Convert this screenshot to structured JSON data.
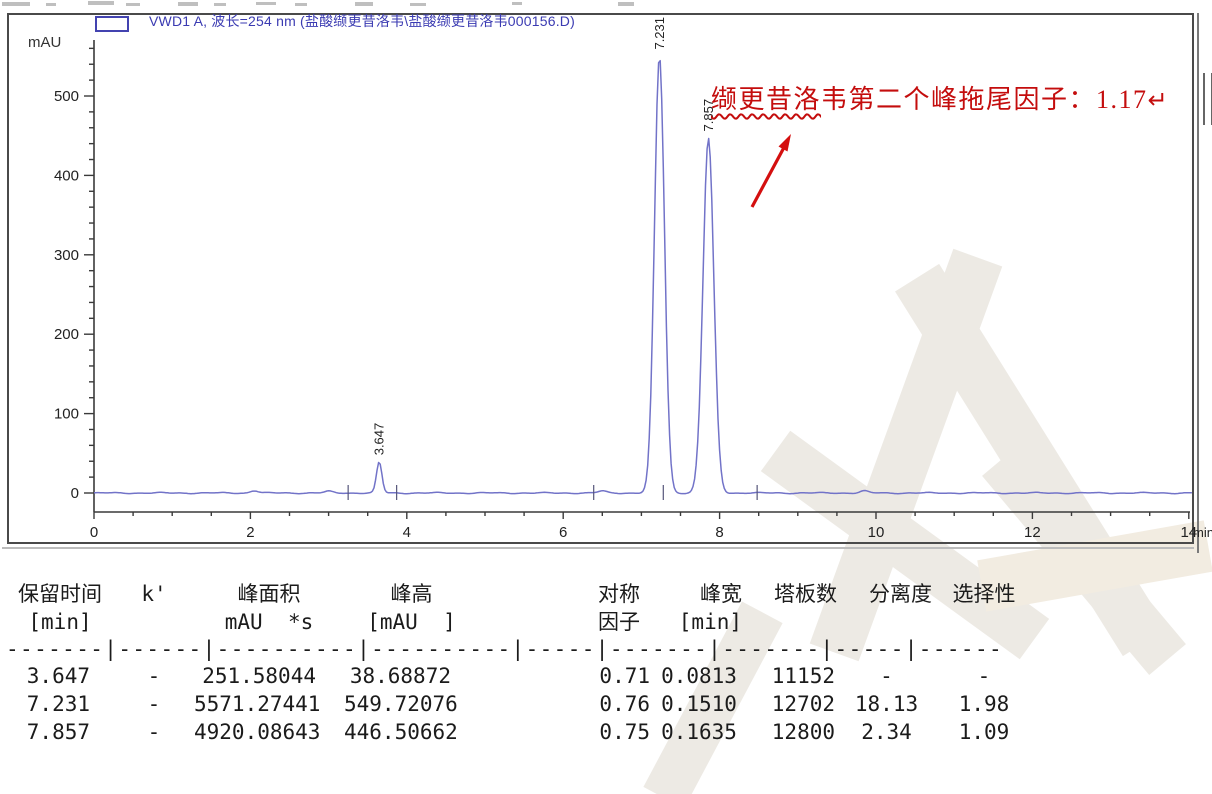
{
  "legend": {
    "label": "VWD1 A, 波长=254 nm (盐酸缬更昔洛韦\\盐酸缬更昔洛韦000156.D)"
  },
  "axes": {
    "y_label": "mAU",
    "x_unit": "min"
  },
  "annotation": {
    "underlined": "缬更昔洛",
    "rest": "韦第二个峰拖尾因子：1.17",
    "return_mark": "↵"
  },
  "chart_data": {
    "type": "line",
    "title": "VWD1 A, 波长=254 nm (盐酸缬更昔洛韦\\盐酸缬更昔洛韦000156.D)",
    "ylabel": "mAU",
    "x_unit": "min",
    "xlim": [
      0,
      14.05
    ],
    "ylim": [
      -25,
      570
    ],
    "x_major_ticks": [
      0,
      2,
      4,
      6,
      8,
      10,
      12,
      14
    ],
    "x_minor_step": 0.5,
    "y_major_ticks": [
      0,
      100,
      200,
      300,
      400,
      500
    ],
    "y_minor_step": 20,
    "grid": false,
    "legend_position": "top-left",
    "baseline_mau": 0,
    "peaks": [
      {
        "rt": 3.647,
        "height": 38.68872,
        "fwhm_min": 0.0813,
        "label": "3.647"
      },
      {
        "rt": 7.231,
        "height": 549.72076,
        "fwhm_min": 0.151,
        "label": "7.231"
      },
      {
        "rt": 7.857,
        "height": 446.50662,
        "fwhm_min": 0.1635,
        "label": "7.857"
      }
    ],
    "minor_bumps": [
      {
        "rt": 2.05,
        "height": 3.0
      },
      {
        "rt": 3.0,
        "height": 2.0
      },
      {
        "rt": 6.5,
        "height": 2.5
      },
      {
        "rt": 9.85,
        "height": 2.5
      }
    ],
    "integration_marks_min": [
      3.25,
      3.87,
      6.39,
      7.28,
      8.48
    ]
  },
  "results_table": {
    "columns": [
      {
        "h1": "保留时间",
        "h2": "[min]"
      },
      {
        "h1": "k'",
        "h2": ""
      },
      {
        "h1": "峰面积",
        "h2": "mAU  *s"
      },
      {
        "h1": "峰高",
        "h2": "[mAU  ]"
      },
      {
        "h1": "对称",
        "h2": "因子"
      },
      {
        "h1": "峰宽",
        "h2": "[min]"
      },
      {
        "h1": "塔板数",
        "h2": ""
      },
      {
        "h1": "分离度",
        "h2": ""
      },
      {
        "h1": "选择性",
        "h2": ""
      }
    ],
    "separator": "-------|------|----------|----------|-----|-------|-------|-----|------",
    "rows": [
      [
        "3.647",
        "-",
        "251.58044",
        "38.68872",
        "0.71",
        "0.0813",
        "11152",
        "-",
        "-"
      ],
      [
        "7.231",
        "-",
        "5571.27441",
        "549.72076",
        "0.76",
        "0.1510",
        "12702",
        "18.13",
        "1.98"
      ],
      [
        "7.857",
        "-",
        "4920.08643",
        "446.50662",
        "0.75",
        "0.1635",
        "12800",
        "2.34",
        "1.09"
      ]
    ]
  },
  "colors": {
    "trace": "#7273c8",
    "legend_text": "#3b3bb2",
    "annotation": "#c40d0d",
    "axis": "#3a3a3a",
    "arrow": "#d40f0f"
  }
}
